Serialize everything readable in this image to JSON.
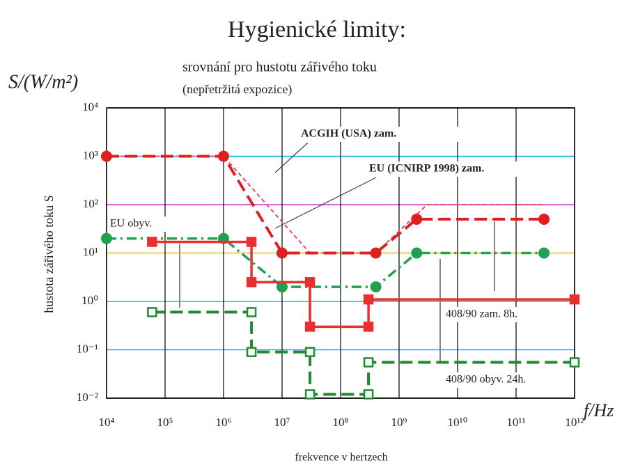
{
  "chart_data": {
    "type": "line",
    "title": "Hygienické limity:",
    "subtitle": "srovnání pro hustotu zářivého toku",
    "subtitle2": "(nepřetržitá expozice)",
    "y_unit_label": "S/(W/m²)",
    "ylabel": "hustota zářivého toku S",
    "x_unit_label": "f/Hz",
    "xlabel": "frekvence v hertzech",
    "log_x": true,
    "log_y": true,
    "xlim": [
      10000,
      1000000000000
    ],
    "ylim": [
      0.01,
      10000
    ],
    "xticks": [
      {
        "value": 10000,
        "label": "10⁴"
      },
      {
        "value": 100000,
        "label": "10⁵"
      },
      {
        "value": 1000000,
        "label": "10⁶"
      },
      {
        "value": 10000000,
        "label": "10⁷"
      },
      {
        "value": 100000000,
        "label": "10⁸"
      },
      {
        "value": 1000000000,
        "label": "10⁹"
      },
      {
        "value": 10000000000,
        "label": "10¹⁰"
      },
      {
        "value": 100000000000,
        "label": "10¹¹"
      },
      {
        "value": 1000000000000,
        "label": "10¹²"
      }
    ],
    "yticks": [
      {
        "value": 0.01,
        "label": "10⁻²"
      },
      {
        "value": 0.1,
        "label": "10⁻¹"
      },
      {
        "value": 1,
        "label": "10⁰"
      },
      {
        "value": 10,
        "label": "10¹"
      },
      {
        "value": 100,
        "label": "10²"
      },
      {
        "value": 1000,
        "label": "10³"
      },
      {
        "value": 10000,
        "label": "10⁴"
      }
    ],
    "grid": true,
    "ygrid_colors": [
      "#000000",
      "#20a0ff",
      "#00c8c8",
      "#e0c000",
      "#d030d0",
      "#00b8e0",
      "#000000"
    ],
    "xgrid_color": "#000000",
    "series": [
      {
        "name": "ACGIH (USA) zam.",
        "color": "#e0506a",
        "style": "dotted",
        "marker": null,
        "x": [
          10000,
          1000000,
          30000000,
          400000000,
          3000000000,
          300000000000
        ],
        "values": [
          1000,
          1000,
          10,
          10,
          100,
          100
        ]
      },
      {
        "name": "EU (ICNIRP 1998) zam.",
        "color": "#e02020",
        "style": "dashed",
        "marker": "circle",
        "x": [
          10000,
          1000000,
          10000000,
          400000000,
          2000000000,
          300000000000
        ],
        "values": [
          1000,
          1000,
          10,
          10,
          50,
          50
        ]
      },
      {
        "name": "EU obyv.",
        "color": "#20a050",
        "style": "dashdot",
        "marker": "circle",
        "x": [
          10000,
          1000000,
          10000000,
          400000000,
          2000000000,
          300000000000
        ],
        "values": [
          20,
          20,
          2,
          2,
          10,
          10
        ]
      },
      {
        "name": "408/90 zam. 8h.",
        "color": "#e83030",
        "style": "solid",
        "marker": "square",
        "x": [
          60000,
          3000000,
          3000000,
          30000000,
          30000000,
          300000000,
          300000000,
          1000000000000
        ],
        "values": [
          17,
          17,
          2.5,
          2.5,
          0.3,
          0.3,
          1.1,
          1.1
        ]
      },
      {
        "name": "408/90 obyv. 24h.",
        "color": "#208a30",
        "style": "dashed",
        "marker": "square",
        "x": [
          60000,
          3000000,
          3000000,
          30000000,
          30000000,
          300000000,
          300000000,
          1000000000000
        ],
        "values": [
          0.6,
          0.6,
          0.09,
          0.09,
          0.012,
          0.012,
          0.055,
          0.055
        ]
      }
    ]
  }
}
